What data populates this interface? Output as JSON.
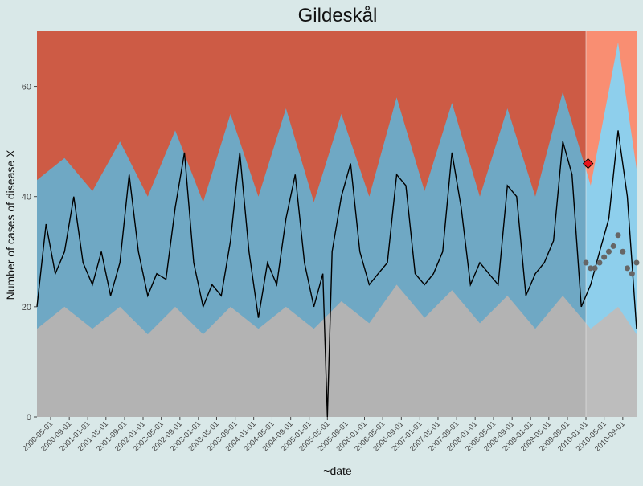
{
  "chart_data": {
    "type": "area",
    "title": "Gildeskål",
    "xlabel": "~date",
    "ylabel": "Number of cases of disease X",
    "ylim": [
      0,
      70
    ],
    "yticks": [
      0,
      20,
      40,
      60
    ],
    "x_start": "2000-02-01",
    "x_end": "2010-12-01",
    "xticks": [
      "2000-05-01",
      "2000-09-01",
      "2001-01-01",
      "2001-05-01",
      "2001-09-01",
      "2002-01-01",
      "2002-05-01",
      "2002-09-01",
      "2003-01-01",
      "2003-05-01",
      "2003-09-01",
      "2004-01-01",
      "2004-05-01",
      "2004-09-01",
      "2005-01-01",
      "2005-05-01",
      "2005-09-01",
      "2006-01-01",
      "2006-05-01",
      "2006-09-01",
      "2007-01-01",
      "2007-05-01",
      "2007-09-01",
      "2008-01-01",
      "2008-05-01",
      "2008-09-01",
      "2009-01-01",
      "2009-05-01",
      "2009-09-01",
      "2010-01-01",
      "2010-05-01",
      "2010-09-01"
    ],
    "grid": false,
    "legend": "none",
    "prediction_start": "2010-01-01",
    "colors": {
      "background": "#d9e8e8",
      "high_zone": "#cd5b45",
      "high_zone_prediction": "#f98e72",
      "medium_zone_outer": "#6fa8c4",
      "medium_zone_inner": "#5d9bb7",
      "medium_zone_prediction": "#8ecfec",
      "low_zone": "#b3b3b3",
      "low_zone_prediction": "#bdbdbd",
      "observed_line": "#000000",
      "prediction_points": "#666666",
      "alert_marker": "#e8141c"
    },
    "series": [
      {
        "name": "",
        "x": [
          "2000-02-01",
          "2000-04-01",
          "2000-06-01",
          "2000-08-01",
          "2000-10-01",
          "2000-12-01",
          "2001-02-01",
          "2001-04-01",
          "2001-06-01",
          "2001-08-01",
          "2001-10-01",
          "2001-12-01",
          "2002-02-01",
          "2002-04-01",
          "2002-06-01",
          "2002-08-01",
          "2002-10-01",
          "2002-12-01",
          "2003-02-01",
          "2003-04-01",
          "2003-06-01",
          "2003-08-01",
          "2003-10-01",
          "2003-12-01",
          "2004-02-01",
          "2004-04-01",
          "2004-06-01",
          "2004-08-01",
          "2004-10-01",
          "2004-12-01",
          "2005-02-01",
          "2005-04-01",
          "2005-05-01",
          "2005-06-01",
          "2005-08-01",
          "2005-10-01",
          "2005-12-01",
          "2006-02-01",
          "2006-04-01",
          "2006-06-01",
          "2006-08-01",
          "2006-10-01",
          "2006-12-01",
          "2007-02-01",
          "2007-04-01",
          "2007-06-01",
          "2007-08-01",
          "2007-10-01",
          "2007-12-01",
          "2008-02-01",
          "2008-04-01",
          "2008-06-01",
          "2008-08-01",
          "2008-10-01",
          "2008-12-01",
          "2009-02-01",
          "2009-04-01",
          "2009-06-01",
          "2009-08-01",
          "2009-10-01",
          "2009-12-01",
          "2010-02-01",
          "2010-04-01",
          "2010-06-01",
          "2010-08-01",
          "2010-10-01",
          "2010-12-01"
        ],
        "y": [
          20,
          35,
          26,
          30,
          40,
          28,
          24,
          30,
          22,
          28,
          44,
          30,
          22,
          26,
          25,
          38,
          48,
          28,
          20,
          24,
          22,
          32,
          48,
          30,
          18,
          28,
          24,
          36,
          44,
          28,
          20,
          26,
          0,
          30,
          40,
          46,
          30,
          24,
          26,
          28,
          44,
          42,
          26,
          24,
          26,
          30,
          48,
          38,
          24,
          28,
          26,
          24,
          42,
          40,
          22,
          26,
          28,
          32,
          50,
          44,
          20,
          24,
          30,
          36,
          52,
          40,
          16
        ]
      },
      {
        "name": "",
        "x": [
          "2010-01-01",
          "2010-02-01",
          "2010-03-01",
          "2010-04-01",
          "2010-05-01",
          "2010-06-01",
          "2010-07-01",
          "2010-08-01",
          "2010-09-01",
          "2010-10-01",
          "2010-11-01",
          "2010-12-01"
        ],
        "y": [
          28,
          27,
          27,
          28,
          29,
          30,
          31,
          33,
          30,
          27,
          26,
          28
        ]
      },
      {
        "name": "",
        "x": [
          "2010-01-15"
        ],
        "y": [
          46
        ]
      }
    ],
    "zones": {
      "low_upper_x": [
        "2000-02-01",
        "2000-08-01",
        "2001-02-01",
        "2001-08-01",
        "2002-02-01",
        "2002-08-01",
        "2003-02-01",
        "2003-08-01",
        "2004-02-01",
        "2004-08-01",
        "2005-02-01",
        "2005-08-01",
        "2006-02-01",
        "2006-08-01",
        "2007-02-01",
        "2007-08-01",
        "2008-02-01",
        "2008-08-01",
        "2009-02-01",
        "2009-08-01",
        "2010-02-01",
        "2010-08-01",
        "2010-12-01"
      ],
      "low_upper_y": [
        16,
        20,
        16,
        20,
        15,
        20,
        15,
        20,
        16,
        20,
        16,
        21,
        17,
        24,
        18,
        23,
        17,
        22,
        16,
        22,
        16,
        20,
        15
      ],
      "medium_upper_x": [
        "2000-02-01",
        "2000-08-01",
        "2001-02-01",
        "2001-08-01",
        "2002-02-01",
        "2002-08-01",
        "2003-02-01",
        "2003-08-01",
        "2004-02-01",
        "2004-08-01",
        "2005-02-01",
        "2005-08-01",
        "2006-02-01",
        "2006-08-01",
        "2007-02-01",
        "2007-08-01",
        "2008-02-01",
        "2008-08-01",
        "2009-02-01",
        "2009-08-01",
        "2010-02-01",
        "2010-08-01",
        "2010-12-01"
      ],
      "medium_upper_y": [
        43,
        47,
        41,
        50,
        40,
        52,
        39,
        55,
        40,
        56,
        39,
        55,
        40,
        58,
        41,
        57,
        40,
        56,
        40,
        59,
        42,
        68,
        45
      ]
    }
  }
}
